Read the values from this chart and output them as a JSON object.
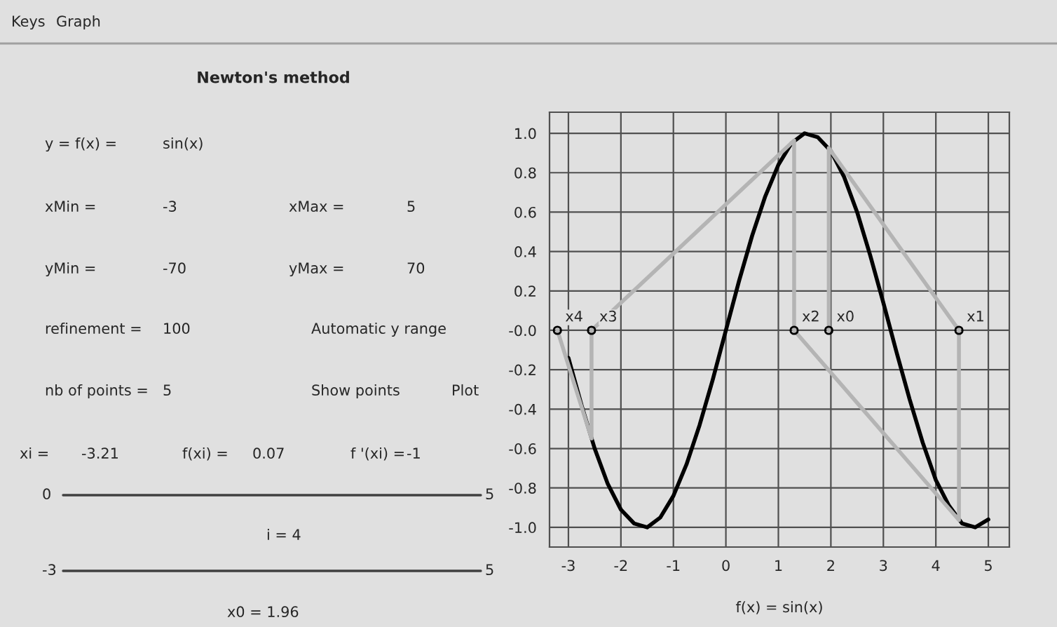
{
  "chart_data": [
    {
      "type": "other",
      "title": "Newton's method",
      "annotations": [
        "Keys",
        "Graph",
        "y = f(x) =",
        "sin(x)",
        "xMin =",
        "-3",
        "xMax =",
        "5",
        "yMin =",
        "-70",
        "yMax =",
        "70",
        "refinement =",
        "100",
        "Automatic y range",
        "nb of points =",
        "5",
        "Show points",
        "Plot",
        "xi =",
        "-3.21",
        "f(xi) =",
        "0.07",
        "f '(xi) =",
        "-1",
        "0",
        "5",
        "i = 4",
        "-3",
        "5",
        "x0 = 1.96"
      ]
    },
    {
      "type": "line",
      "xlabel": "f(x) = sin(x)",
      "xlim": [
        -3.36,
        5.4
      ],
      "ylim": [
        -1.1,
        1.107
      ],
      "xticks": [
        -3,
        -2,
        -1,
        0,
        1,
        2,
        3,
        4,
        5
      ],
      "yticks": [
        {
          "value": 1.0,
          "label": "1.0"
        },
        0.8,
        0.6,
        0.4,
        0.2,
        {
          "value": 0,
          "label": "-0.0"
        },
        -0.2,
        -0.4,
        -0.6,
        -0.8,
        {
          "value": -1.0,
          "label": "-1.0"
        }
      ],
      "grid": true,
      "series": [
        {
          "type": "line",
          "color": "#000000",
          "x": [
            -3,
            -2.75,
            -2.5,
            -2.25,
            -2,
            -1.75,
            -1.5,
            -1.25,
            -1,
            -0.75,
            -0.5,
            -0.25,
            0,
            0.25,
            0.5,
            0.75,
            1,
            1.25,
            1.5,
            1.75,
            2,
            2.25,
            2.5,
            2.75,
            3,
            3.25,
            3.5,
            3.75,
            4,
            4.25,
            4.5,
            4.75,
            5
          ],
          "values": [
            -0.14,
            -0.38,
            -0.6,
            -0.78,
            -0.91,
            -0.98,
            -1.0,
            -0.95,
            -0.84,
            -0.68,
            -0.48,
            -0.25,
            0,
            0.25,
            0.48,
            0.68,
            0.84,
            0.95,
            1.0,
            0.98,
            0.91,
            0.78,
            0.6,
            0.38,
            0.14,
            -0.11,
            -0.35,
            -0.57,
            -0.76,
            -0.89,
            -0.98,
            -1.0,
            -0.96
          ]
        },
        {
          "type": "line",
          "color": "#b4b4b4",
          "x": [
            1.96,
            1.96,
            4.44,
            4.44,
            1.3,
            1.3,
            -2.56,
            -2.56,
            -3.21
          ],
          "values": [
            0,
            0.925,
            0,
            -0.963,
            0,
            0.964,
            0,
            -0.549,
            0
          ]
        },
        {
          "type": "scatter",
          "color": "#000000",
          "marker": "circle",
          "x": [
            1.96,
            4.44,
            1.3,
            -2.56,
            -3.21
          ],
          "values": [
            0,
            0,
            0,
            0,
            0
          ]
        }
      ],
      "annotations": [
        {
          "text": "x0",
          "x": 1.96,
          "y": 0
        },
        {
          "text": "x1",
          "x": 4.44,
          "y": 0
        },
        {
          "text": "x2",
          "x": 1.3,
          "y": 0
        },
        {
          "text": "x3",
          "x": -2.56,
          "y": 0
        },
        {
          "text": "x4",
          "x": -3.21,
          "y": 0
        }
      ]
    }
  ]
}
